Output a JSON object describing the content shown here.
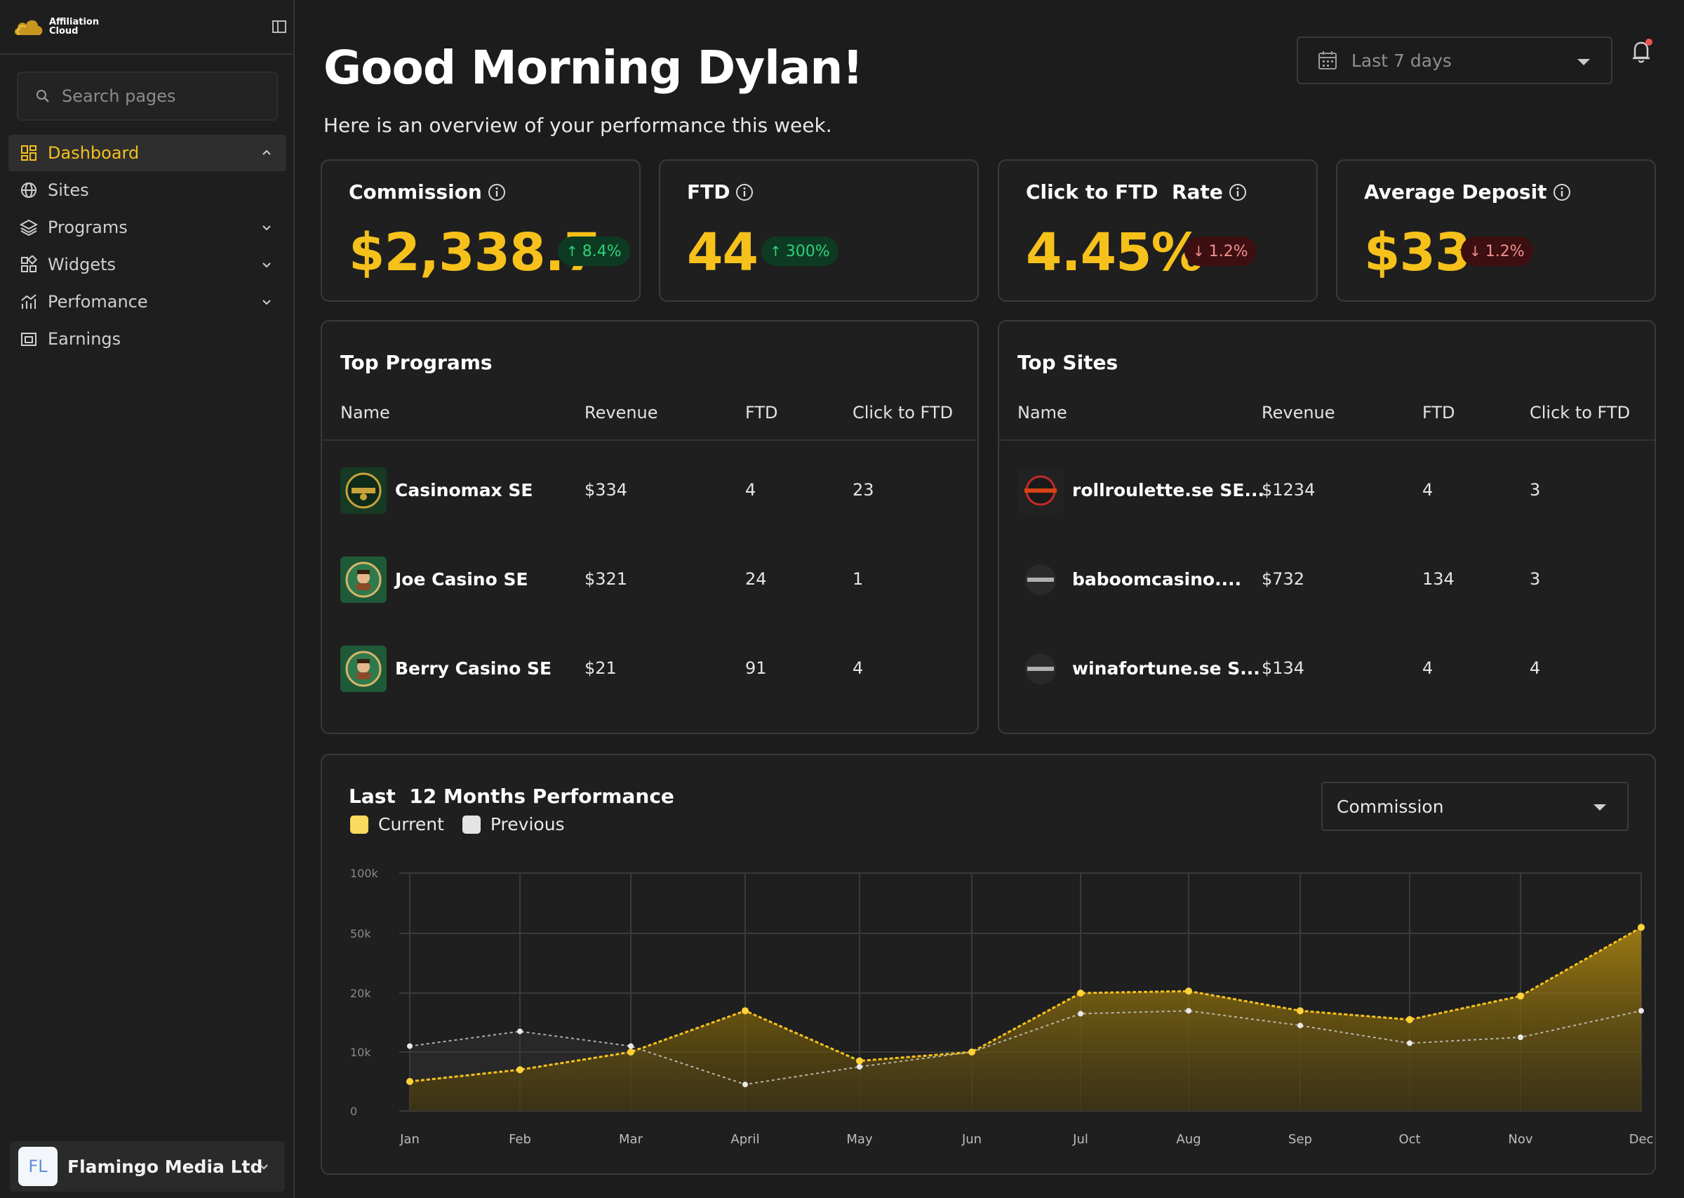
{
  "brand": {
    "name_line1": "Affiliation",
    "name_line2": "Cloud"
  },
  "search": {
    "placeholder": "Search pages"
  },
  "nav": [
    {
      "label": "Dashboard",
      "icon": "grid-icon",
      "active": true,
      "chevron": "up"
    },
    {
      "label": "Sites",
      "icon": "globe-icon",
      "active": false,
      "chevron": ""
    },
    {
      "label": "Programs",
      "icon": "layers-icon",
      "active": false,
      "chevron": "down"
    },
    {
      "label": "Widgets",
      "icon": "widgets-icon",
      "active": false,
      "chevron": "down"
    },
    {
      "label": "Perfomance",
      "icon": "chart-icon",
      "active": false,
      "chevron": "down"
    },
    {
      "label": "Earnings",
      "icon": "wallet-icon",
      "active": false,
      "chevron": ""
    }
  ],
  "account": {
    "initials": "FL",
    "name": "Flamingo Media Ltd"
  },
  "header": {
    "greeting": "Good Morning Dylan!",
    "subtitle": "Here is an overview of your performance this week.",
    "date_range": "Last 7 days"
  },
  "kpis": [
    {
      "title": "Commission",
      "value": "$2,338.7",
      "change": "8.4%",
      "direction": "up"
    },
    {
      "title": "FTD",
      "value": "44",
      "change": "300%",
      "direction": "up"
    },
    {
      "title": "Click to FTD  Rate",
      "value": "4.45%",
      "change": "1.2%",
      "direction": "down"
    },
    {
      "title": "Average Deposit",
      "value": "$33",
      "change": "1.2%",
      "direction": "down"
    }
  ],
  "top_programs": {
    "title": "Top Programs",
    "columns": [
      "Name",
      "Revenue",
      "FTD",
      "Click to FTD"
    ],
    "rows": [
      {
        "name": "Casinomax SE",
        "revenue": "$334",
        "ftd": "4",
        "ctf": "23"
      },
      {
        "name": "Joe Casino SE",
        "revenue": "$321",
        "ftd": "24",
        "ctf": "1"
      },
      {
        "name": "Berry Casino SE",
        "revenue": "$21",
        "ftd": "91",
        "ctf": "4"
      }
    ]
  },
  "top_sites": {
    "title": "Top Sites",
    "columns": [
      "Name",
      "Revenue",
      "FTD",
      "Click to FTD"
    ],
    "rows": [
      {
        "name": "rollroulette.se SE...",
        "revenue": "$1234",
        "ftd": "4",
        "ctf": "3"
      },
      {
        "name": "baboomcasino....",
        "revenue": "$732",
        "ftd": "134",
        "ctf": "3"
      },
      {
        "name": "winafortune.se S...",
        "revenue": "$134",
        "ftd": "4",
        "ctf": "4"
      }
    ]
  },
  "performance": {
    "title": "Last  12 Months Performance",
    "legend_current": "Current",
    "legend_previous": "Previous",
    "metric": "Commission",
    "colors": {
      "current": "#f6c11b",
      "previous": "#d9d9d9"
    }
  },
  "chart_data": {
    "type": "area",
    "title": "Last  12 Months Performance",
    "x": [
      "Jan",
      "Feb",
      "Mar",
      "April",
      "May",
      "Jun",
      "Jul",
      "Aug",
      "Sep",
      "Oct",
      "Nov",
      "Dec"
    ],
    "y_ticks": [
      "100k",
      "50k",
      "20k",
      "10k",
      "0"
    ],
    "y_scale": "non-linear (0, 10k, 20k, 50k, 100k equally spaced)",
    "series": [
      {
        "name": "Current",
        "values": [
          5000,
          7000,
          10000,
          17000,
          8500,
          10000,
          20000,
          21000,
          17000,
          15500,
          19500,
          55000
        ]
      },
      {
        "name": "Previous",
        "values": [
          11000,
          13500,
          11000,
          4500,
          7500,
          10000,
          16500,
          17000,
          14500,
          11500,
          12500,
          17000
        ]
      }
    ],
    "grid": true,
    "legend": "top-left"
  }
}
